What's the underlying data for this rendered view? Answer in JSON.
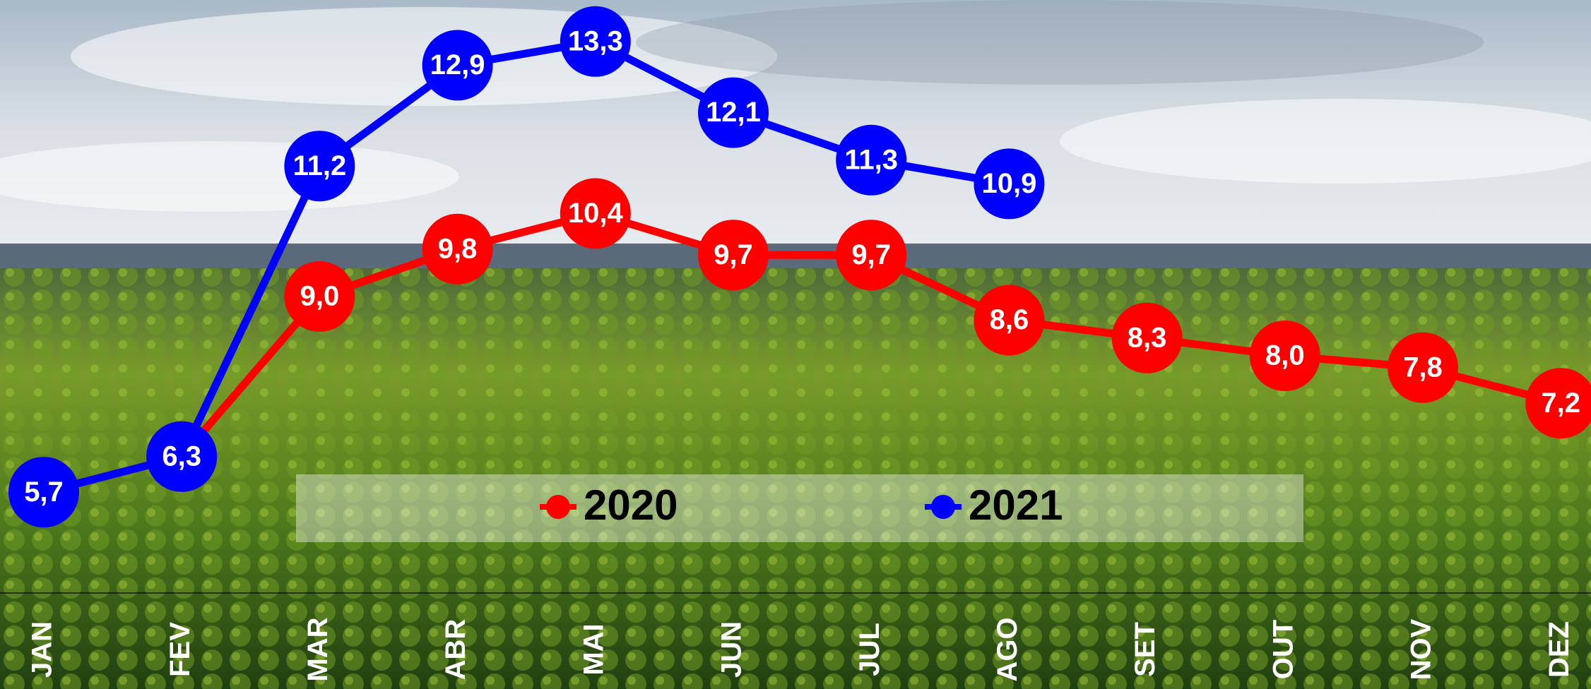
{
  "chart_data": {
    "type": "line",
    "categories": [
      "JAN",
      "FEV",
      "MAR",
      "ABR",
      "MAI",
      "JUN",
      "JUL",
      "AGO",
      "SET",
      "OUT",
      "NOV",
      "DEZ"
    ],
    "series": [
      {
        "name": "2020",
        "color": "#ff0000",
        "values": [
          5.7,
          6.3,
          9.0,
          9.8,
          10.4,
          9.7,
          9.7,
          8.6,
          8.3,
          8.0,
          7.8,
          7.2
        ],
        "value_labels": [
          "5,7",
          "6,3",
          "9,0",
          "9,8",
          "10,4",
          "9,7",
          "9,7",
          "8,6",
          "8,3",
          "8,0",
          "7,8",
          "7,2"
        ]
      },
      {
        "name": "2021",
        "color": "#0000ff",
        "values": [
          5.7,
          6.3,
          11.2,
          12.9,
          13.3,
          12.1,
          11.3,
          10.9,
          null,
          null,
          null,
          null
        ],
        "value_labels": [
          "5,7",
          "6,3",
          "11,2",
          "12,9",
          "13,3",
          "12,1",
          "11,3",
          "10,9",
          null,
          null,
          null,
          null
        ]
      }
    ],
    "ylim": [
      4,
      14
    ]
  }
}
